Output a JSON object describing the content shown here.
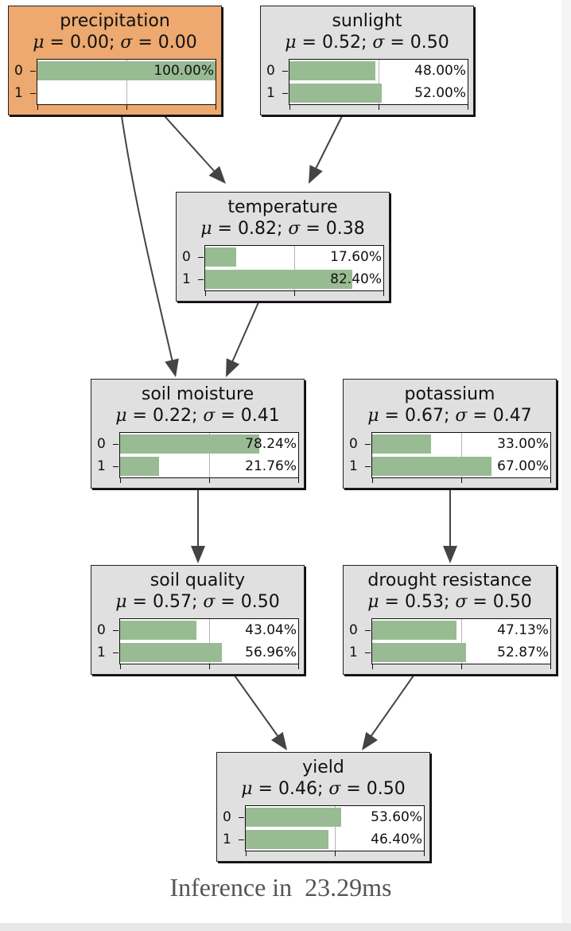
{
  "nodes": [
    {
      "id": "precipitation",
      "title": "precipitation",
      "mu": "0.00",
      "sigma": "0.00",
      "evidence": true,
      "states": [
        {
          "label": "0",
          "pct": "100.00%",
          "value": 1.0
        },
        {
          "label": "1",
          "pct": "",
          "value": 0.0
        }
      ]
    },
    {
      "id": "sunlight",
      "title": "sunlight",
      "mu": "0.52",
      "sigma": "0.50",
      "evidence": false,
      "states": [
        {
          "label": "0",
          "pct": "48.00%",
          "value": 0.48
        },
        {
          "label": "1",
          "pct": "52.00%",
          "value": 0.52
        }
      ]
    },
    {
      "id": "temperature",
      "title": "temperature",
      "mu": "0.82",
      "sigma": "0.38",
      "evidence": false,
      "states": [
        {
          "label": "0",
          "pct": "17.60%",
          "value": 0.176
        },
        {
          "label": "1",
          "pct": "82.40%",
          "value": 0.824
        }
      ]
    },
    {
      "id": "soil-moisture",
      "title": "soil moisture",
      "mu": "0.22",
      "sigma": "0.41",
      "evidence": false,
      "states": [
        {
          "label": "0",
          "pct": "78.24%",
          "value": 0.7824
        },
        {
          "label": "1",
          "pct": "21.76%",
          "value": 0.2176
        }
      ]
    },
    {
      "id": "potassium",
      "title": "potassium",
      "mu": "0.67",
      "sigma": "0.47",
      "evidence": false,
      "states": [
        {
          "label": "0",
          "pct": "33.00%",
          "value": 0.33
        },
        {
          "label": "1",
          "pct": "67.00%",
          "value": 0.67
        }
      ]
    },
    {
      "id": "soil-quality",
      "title": "soil quality",
      "mu": "0.57",
      "sigma": "0.50",
      "evidence": false,
      "states": [
        {
          "label": "0",
          "pct": "43.04%",
          "value": 0.4304
        },
        {
          "label": "1",
          "pct": "56.96%",
          "value": 0.5696
        }
      ]
    },
    {
      "id": "drought-resistance",
      "title": "drought resistance",
      "mu": "0.53",
      "sigma": "0.50",
      "evidence": false,
      "states": [
        {
          "label": "0",
          "pct": "47.13%",
          "value": 0.4713
        },
        {
          "label": "1",
          "pct": "52.87%",
          "value": 0.5287
        }
      ]
    },
    {
      "id": "yield",
      "title": "yield",
      "mu": "0.46",
      "sigma": "0.50",
      "evidence": false,
      "states": [
        {
          "label": "0",
          "pct": "53.60%",
          "value": 0.536
        },
        {
          "label": "1",
          "pct": "46.40%",
          "value": 0.464
        }
      ]
    }
  ],
  "edges": [
    {
      "from": "precipitation",
      "to": "temperature"
    },
    {
      "from": "precipitation",
      "to": "soil-moisture"
    },
    {
      "from": "sunlight",
      "to": "temperature"
    },
    {
      "from": "temperature",
      "to": "soil-moisture"
    },
    {
      "from": "soil-moisture",
      "to": "soil-quality"
    },
    {
      "from": "potassium",
      "to": "drought-resistance"
    },
    {
      "from": "soil-quality",
      "to": "yield"
    },
    {
      "from": "drought-resistance",
      "to": "yield"
    }
  ],
  "footer": {
    "label": "Inference in",
    "time": "23.29ms"
  },
  "colors": {
    "evidence_node": "#eda96f",
    "node": "#e0e0e0",
    "bar": "#99bb93"
  }
}
